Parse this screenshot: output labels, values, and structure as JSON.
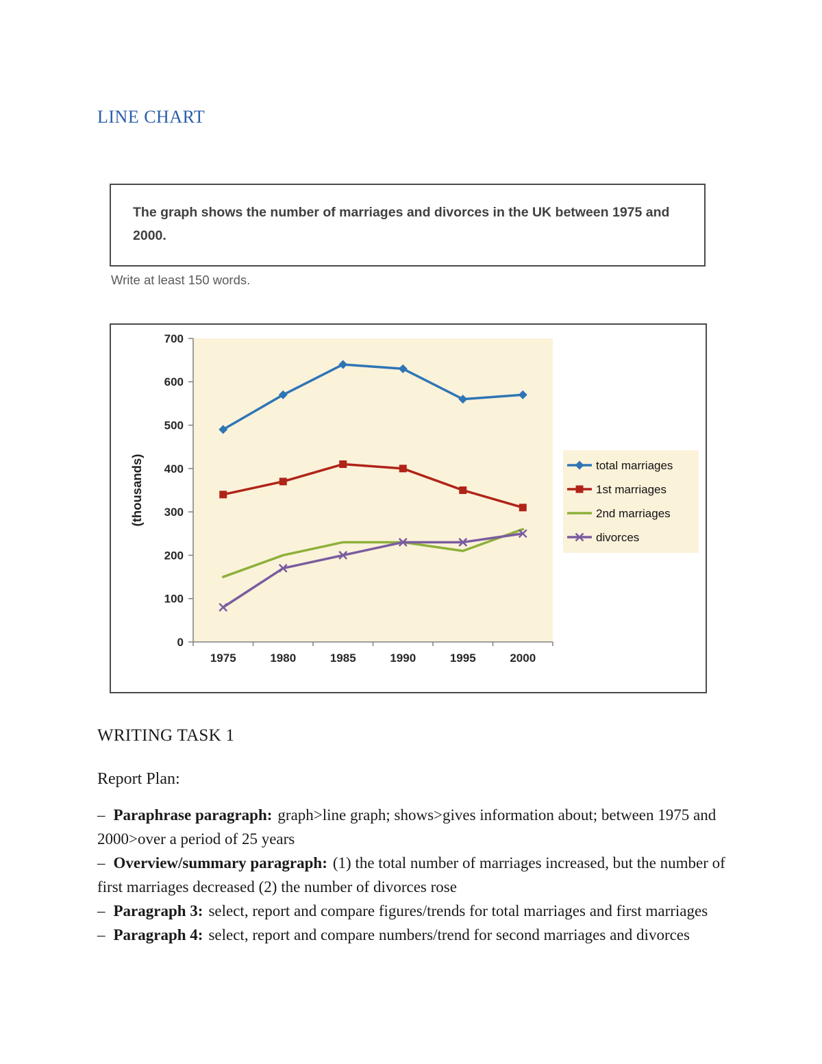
{
  "document": {
    "heading": "LINE CHART",
    "task_prompt": "The graph shows the number of marriages and divorces in the UK between 1975 and 2000.",
    "instruction": "Write at least 150 words.",
    "section_title": "WRITING TASK 1",
    "report_plan_heading": "Report Plan:"
  },
  "report_plan": {
    "items": [
      {
        "bullet": "–",
        "label": "Paraphrase paragraph:",
        "text": "graph>line graph; shows>gives information about; between 1975 and 2000>over a period of 25 years"
      },
      {
        "bullet": "–",
        "label": "Overview/summary paragraph:",
        "text": "(1) the total number of marriages increased, but the number of first marriages decreased (2) the number of divorces rose"
      },
      {
        "bullet": "–",
        "label": "Paragraph 3:",
        "text": "select, report and compare figures/trends for total marriages and first marriages"
      },
      {
        "bullet": "–",
        "label": "Paragraph 4:",
        "text": "select, report and compare numbers/trend for second marriages and divorces"
      }
    ]
  },
  "chart_data": {
    "type": "line",
    "x": [
      1975,
      1980,
      1985,
      1990,
      1995,
      2000
    ],
    "series": [
      {
        "name": "total marriages",
        "color": "#2E75B6",
        "marker": "diamond",
        "values": [
          490,
          570,
          640,
          630,
          560,
          570
        ]
      },
      {
        "name": "1st marriages",
        "color": "#B02418",
        "marker": "square",
        "values": [
          340,
          370,
          410,
          400,
          350,
          310
        ]
      },
      {
        "name": "2nd marriages",
        "color": "#8DB03A",
        "marker": "none",
        "values": [
          150,
          200,
          230,
          230,
          210,
          260
        ]
      },
      {
        "name": "divorces",
        "color": "#7A5C9F",
        "marker": "x",
        "values": [
          80,
          170,
          200,
          230,
          230,
          250
        ]
      }
    ],
    "title": "",
    "xlabel": "",
    "ylabel": "(thousands)",
    "ylim": [
      0,
      700
    ],
    "ytick_step": 100,
    "grid": false,
    "plot_bg": "#FBF2DA",
    "legend_bg": "#FBF2DA",
    "legend_position": "right"
  }
}
